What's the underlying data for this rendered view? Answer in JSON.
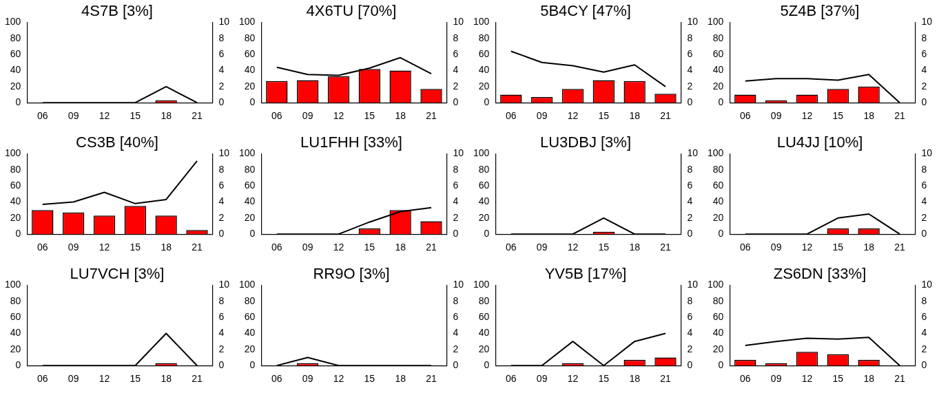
{
  "chart_data": [
    {
      "type": "bar",
      "title": "4S7B [3%]",
      "categories": [
        "06",
        "09",
        "12",
        "15",
        "18",
        "21"
      ],
      "series": [
        {
          "color": "#ff0000",
          "values": [
            0,
            0,
            0,
            0,
            3,
            0
          ]
        },
        {
          "type": "line",
          "axis": "y2",
          "color": "#000000",
          "values": [
            0,
            0,
            0,
            0,
            2,
            0
          ]
        }
      ],
      "ylim": [
        0,
        100
      ],
      "yticks": [
        0,
        20,
        40,
        60,
        80,
        100
      ],
      "y2lim": [
        0,
        10
      ],
      "y2ticks": [
        0,
        2,
        4,
        6,
        8,
        10
      ],
      "grid": false,
      "legend": false
    },
    {
      "type": "bar",
      "title": "4X6TU [70%]",
      "categories": [
        "06",
        "09",
        "12",
        "15",
        "18",
        "21"
      ],
      "series": [
        {
          "color": "#ff0000",
          "values": [
            27,
            28,
            33,
            42,
            40,
            17
          ]
        },
        {
          "type": "line",
          "axis": "y2",
          "color": "#000000",
          "values": [
            4.4,
            3.5,
            3.4,
            4.3,
            5.6,
            3.6
          ]
        }
      ],
      "ylim": [
        0,
        100
      ],
      "yticks": [
        0,
        20,
        40,
        60,
        80,
        100
      ],
      "y2lim": [
        0,
        10
      ],
      "y2ticks": [
        0,
        2,
        4,
        6,
        8,
        10
      ],
      "grid": false,
      "legend": false
    },
    {
      "type": "bar",
      "title": "5B4CY [47%]",
      "categories": [
        "06",
        "09",
        "12",
        "15",
        "18",
        "21"
      ],
      "series": [
        {
          "color": "#ff0000",
          "values": [
            10,
            7,
            17,
            28,
            27,
            11
          ]
        },
        {
          "type": "line",
          "axis": "y2",
          "color": "#000000",
          "values": [
            6.4,
            5.0,
            4.6,
            3.8,
            4.7,
            2.0
          ]
        }
      ],
      "ylim": [
        0,
        100
      ],
      "yticks": [
        0,
        20,
        40,
        60,
        80,
        100
      ],
      "y2lim": [
        0,
        10
      ],
      "y2ticks": [
        0,
        2,
        4,
        6,
        8,
        10
      ],
      "grid": false,
      "legend": false
    },
    {
      "type": "bar",
      "title": "5Z4B [37%]",
      "categories": [
        "06",
        "09",
        "12",
        "15",
        "18",
        "21"
      ],
      "series": [
        {
          "color": "#ff0000",
          "values": [
            10,
            3,
            10,
            17,
            20,
            0
          ]
        },
        {
          "type": "line",
          "axis": "y2",
          "color": "#000000",
          "values": [
            2.7,
            3.0,
            3.0,
            2.8,
            3.5,
            0
          ]
        }
      ],
      "ylim": [
        0,
        100
      ],
      "yticks": [
        0,
        20,
        40,
        60,
        80,
        100
      ],
      "y2lim": [
        0,
        10
      ],
      "y2ticks": [
        0,
        2,
        4,
        6,
        8,
        10
      ],
      "grid": false,
      "legend": false
    },
    {
      "type": "bar",
      "title": "CS3B [40%]",
      "categories": [
        "06",
        "09",
        "12",
        "15",
        "18",
        "21"
      ],
      "series": [
        {
          "color": "#ff0000",
          "values": [
            30,
            27,
            23,
            35,
            23,
            5
          ]
        },
        {
          "type": "line",
          "axis": "y2",
          "color": "#000000",
          "values": [
            3.7,
            4.0,
            5.2,
            3.8,
            4.3,
            9.1
          ]
        }
      ],
      "ylim": [
        0,
        100
      ],
      "yticks": [
        0,
        20,
        40,
        60,
        80,
        100
      ],
      "y2lim": [
        0,
        10
      ],
      "y2ticks": [
        0,
        2,
        4,
        6,
        8,
        10
      ],
      "grid": false,
      "legend": false
    },
    {
      "type": "bar",
      "title": "LU1FHH [33%]",
      "categories": [
        "06",
        "09",
        "12",
        "15",
        "18",
        "21"
      ],
      "series": [
        {
          "color": "#ff0000",
          "values": [
            0,
            0,
            0,
            7,
            30,
            16
          ]
        },
        {
          "type": "line",
          "axis": "y2",
          "color": "#000000",
          "values": [
            0,
            0,
            0,
            1.5,
            2.8,
            3.3
          ]
        }
      ],
      "ylim": [
        0,
        100
      ],
      "yticks": [
        0,
        20,
        40,
        60,
        80,
        100
      ],
      "y2lim": [
        0,
        10
      ],
      "y2ticks": [
        0,
        2,
        4,
        6,
        8,
        10
      ],
      "grid": false,
      "legend": false
    },
    {
      "type": "bar",
      "title": "LU3DBJ [3%]",
      "categories": [
        "06",
        "09",
        "12",
        "15",
        "18",
        "21"
      ],
      "series": [
        {
          "color": "#ff0000",
          "values": [
            0,
            0,
            0,
            3,
            0,
            0
          ]
        },
        {
          "type": "line",
          "axis": "y2",
          "color": "#000000",
          "values": [
            0,
            0,
            0,
            2,
            0,
            0
          ]
        }
      ],
      "ylim": [
        0,
        100
      ],
      "yticks": [
        0,
        20,
        40,
        60,
        80,
        100
      ],
      "y2lim": [
        0,
        10
      ],
      "y2ticks": [
        0,
        2,
        4,
        6,
        8,
        10
      ],
      "grid": false,
      "legend": false
    },
    {
      "type": "bar",
      "title": "LU4JJ [10%]",
      "categories": [
        "06",
        "09",
        "12",
        "15",
        "18",
        "21"
      ],
      "series": [
        {
          "color": "#ff0000",
          "values": [
            0,
            0,
            0,
            7,
            7,
            0
          ]
        },
        {
          "type": "line",
          "axis": "y2",
          "color": "#000000",
          "values": [
            0,
            0,
            0,
            2,
            2.5,
            0
          ]
        }
      ],
      "ylim": [
        0,
        100
      ],
      "yticks": [
        0,
        20,
        40,
        60,
        80,
        100
      ],
      "y2lim": [
        0,
        10
      ],
      "y2ticks": [
        0,
        2,
        4,
        6,
        8,
        10
      ],
      "grid": false,
      "legend": false
    },
    {
      "type": "bar",
      "title": "LU7VCH [3%]",
      "categories": [
        "06",
        "09",
        "12",
        "15",
        "18",
        "21"
      ],
      "series": [
        {
          "color": "#ff0000",
          "values": [
            0,
            0,
            0,
            0,
            3,
            0
          ]
        },
        {
          "type": "line",
          "axis": "y2",
          "color": "#000000",
          "values": [
            0,
            0,
            0,
            0,
            4,
            0
          ]
        }
      ],
      "ylim": [
        0,
        100
      ],
      "yticks": [
        0,
        20,
        40,
        60,
        80,
        100
      ],
      "y2lim": [
        0,
        10
      ],
      "y2ticks": [
        0,
        2,
        4,
        6,
        8,
        10
      ],
      "grid": false,
      "legend": false
    },
    {
      "type": "bar",
      "title": "RR9O [3%]",
      "categories": [
        "06",
        "09",
        "12",
        "15",
        "18",
        "21"
      ],
      "series": [
        {
          "color": "#ff0000",
          "values": [
            0,
            3,
            0,
            0,
            0,
            0
          ]
        },
        {
          "type": "line",
          "axis": "y2",
          "color": "#000000",
          "values": [
            0,
            1,
            0,
            0,
            0,
            0
          ]
        }
      ],
      "ylim": [
        0,
        100
      ],
      "yticks": [
        0,
        20,
        40,
        60,
        80,
        100
      ],
      "y2lim": [
        0,
        10
      ],
      "y2ticks": [
        0,
        2,
        4,
        6,
        8,
        10
      ],
      "grid": false,
      "legend": false
    },
    {
      "type": "bar",
      "title": "YV5B [17%]",
      "categories": [
        "06",
        "09",
        "12",
        "15",
        "18",
        "21"
      ],
      "series": [
        {
          "color": "#ff0000",
          "values": [
            0,
            0,
            3,
            0,
            7,
            10
          ]
        },
        {
          "type": "line",
          "axis": "y2",
          "color": "#000000",
          "values": [
            0,
            0,
            3,
            0,
            3,
            4
          ]
        }
      ],
      "ylim": [
        0,
        100
      ],
      "yticks": [
        0,
        20,
        40,
        60,
        80,
        100
      ],
      "y2lim": [
        0,
        10
      ],
      "y2ticks": [
        0,
        2,
        4,
        6,
        8,
        10
      ],
      "grid": false,
      "legend": false
    },
    {
      "type": "bar",
      "title": "ZS6DN [33%]",
      "categories": [
        "06",
        "09",
        "12",
        "15",
        "18",
        "21"
      ],
      "series": [
        {
          "color": "#ff0000",
          "values": [
            7,
            3,
            17,
            14,
            7,
            0
          ]
        },
        {
          "type": "line",
          "axis": "y2",
          "color": "#000000",
          "values": [
            2.5,
            3.0,
            3.4,
            3.3,
            3.5,
            0
          ]
        }
      ],
      "ylim": [
        0,
        100
      ],
      "yticks": [
        0,
        20,
        40,
        60,
        80,
        100
      ],
      "y2lim": [
        0,
        10
      ],
      "y2ticks": [
        0,
        2,
        4,
        6,
        8,
        10
      ],
      "grid": false,
      "legend": false
    }
  ]
}
